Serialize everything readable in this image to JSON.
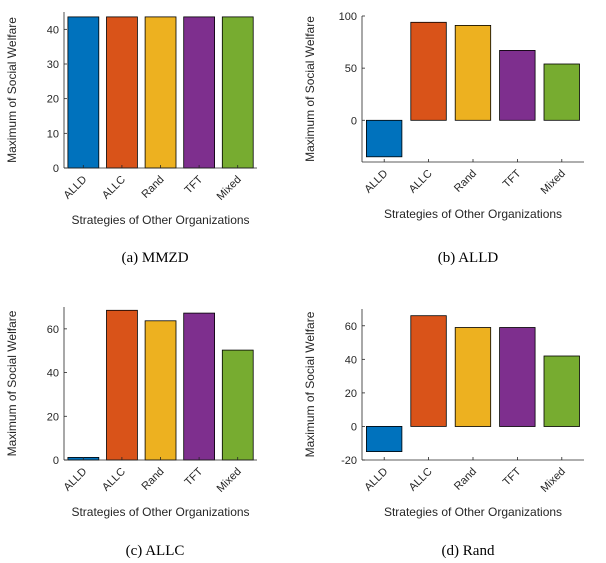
{
  "colors": {
    "ALLD": "#0072BD",
    "ALLC": "#D95319",
    "Rand": "#EDB120",
    "TFT": "#7E2F8E",
    "Mixed": "#77AC30"
  },
  "chart_data": [
    {
      "type": "bar",
      "caption": "(a)  MMZD",
      "categories": [
        "ALLD",
        "ALLC",
        "Rand",
        "TFT",
        "Mixed"
      ],
      "values": [
        43.6,
        43.6,
        43.6,
        43.6,
        43.6
      ],
      "xlabel": "Strategies of Other Organizations",
      "ylabel": "Maximum of Social Welfare",
      "ylim": [
        0,
        45
      ],
      "yticks": [
        0,
        10,
        20,
        30,
        40
      ],
      "grid": false
    },
    {
      "type": "bar",
      "caption": "(b)  ALLD",
      "categories": [
        "ALLD",
        "ALLC",
        "Rand",
        "TFT",
        "Mixed"
      ],
      "values": [
        -35,
        94,
        91,
        67,
        54
      ],
      "xlabel": "Strategies of Other Organizations",
      "ylabel": "Maximum of Social Welfare",
      "ylim": [
        -40,
        100
      ],
      "yticks": [
        0,
        50,
        100
      ],
      "grid": false
    },
    {
      "type": "bar",
      "caption": "(c)  ALLC",
      "categories": [
        "ALLD",
        "ALLC",
        "Rand",
        "TFT",
        "Mixed"
      ],
      "values": [
        1.2,
        68.5,
        63.7,
        67.2,
        50.3
      ],
      "xlabel": "Strategies of Other Organizations",
      "ylabel": "Maximum of Social Welfare",
      "ylim": [
        0,
        70
      ],
      "yticks": [
        0,
        20,
        40,
        60
      ],
      "grid": false
    },
    {
      "type": "bar",
      "caption": "(d)  Rand",
      "categories": [
        "ALLD",
        "ALLC",
        "Rand",
        "TFT",
        "Mixed"
      ],
      "values": [
        -15,
        66,
        59,
        59,
        42
      ],
      "xlabel": "Strategies of Other Organizations",
      "ylabel": "Maximum of Social Welfare",
      "ylim": [
        -20,
        70
      ],
      "yticks": [
        -20,
        0,
        20,
        40,
        60
      ],
      "grid": false
    }
  ]
}
